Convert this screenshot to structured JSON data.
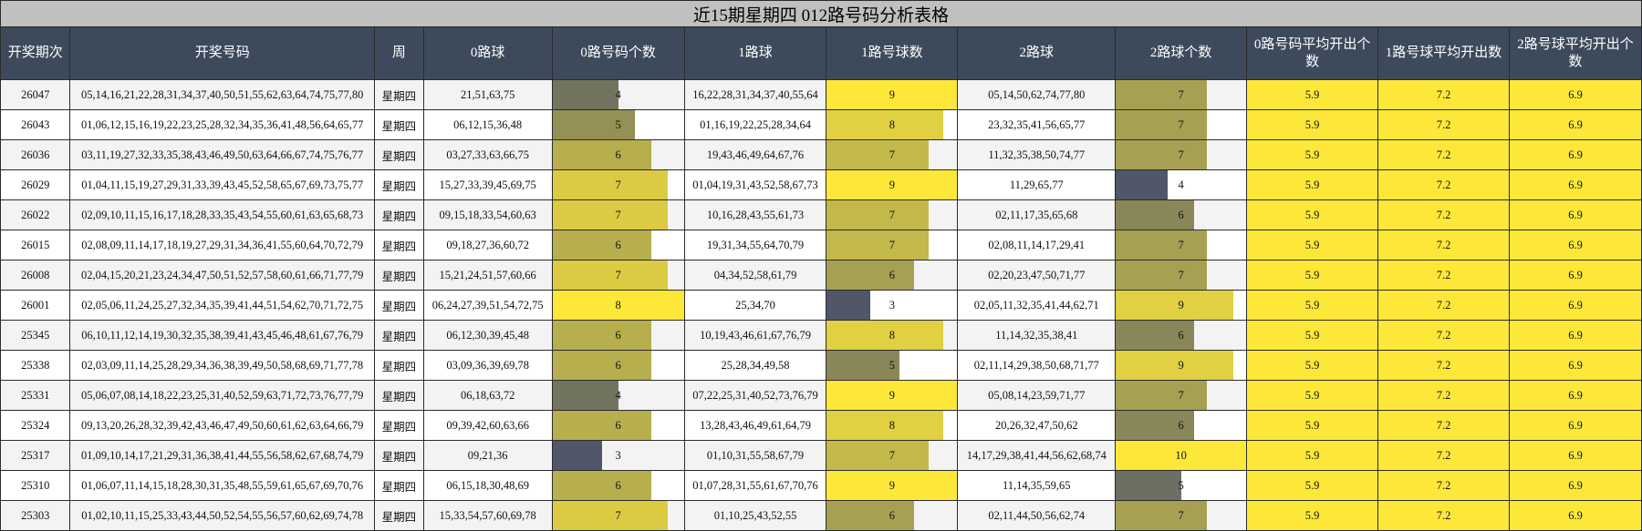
{
  "title": "近15期星期四 012路号码分析表格",
  "header": [
    "开奖期次",
    "开奖号码",
    "周",
    "0路球",
    "0路号码个数",
    "1路球",
    "1路号球数",
    "2路球",
    "2路球个数",
    "0路号码平均开出个数",
    "1路号球平均开出数",
    "2路号球平均开出个数"
  ],
  "rows": [
    [
      "26047",
      "05,14,16,21,22,28,31,34,37,40,50,51,55,62,63,64,74,75,77,80",
      "星期四",
      "21,51,63,75",
      4,
      "16,22,28,31,34,37,40,55,64",
      9,
      "05,14,50,62,74,77,80",
      7,
      5.9,
      7.2,
      6.9
    ],
    [
      "26043",
      "01,06,12,15,16,19,22,23,25,28,32,34,35,36,41,48,56,64,65,77",
      "星期四",
      "06,12,15,36,48",
      5,
      "01,16,19,22,25,28,34,64",
      8,
      "23,32,35,41,56,65,77",
      7,
      5.9,
      7.2,
      6.9
    ],
    [
      "26036",
      "03,11,19,27,32,33,35,38,43,46,49,50,63,64,66,67,74,75,76,77",
      "星期四",
      "03,27,33,63,66,75",
      6,
      "19,43,46,49,64,67,76",
      7,
      "11,32,35,38,50,74,77",
      7,
      5.9,
      7.2,
      6.9
    ],
    [
      "26029",
      "01,04,11,15,19,27,29,31,33,39,43,45,52,58,65,67,69,73,75,77",
      "星期四",
      "15,27,33,39,45,69,75",
      7,
      "01,04,19,31,43,52,58,67,73",
      9,
      "11,29,65,77",
      4,
      5.9,
      7.2,
      6.9
    ],
    [
      "26022",
      "02,09,10,11,15,16,17,18,28,33,35,43,54,55,60,61,63,65,68,73",
      "星期四",
      "09,15,18,33,54,60,63",
      7,
      "10,16,28,43,55,61,73",
      7,
      "02,11,17,35,65,68",
      6,
      5.9,
      7.2,
      6.9
    ],
    [
      "26015",
      "02,08,09,11,14,17,18,19,27,29,31,34,36,41,55,60,64,70,72,79",
      "星期四",
      "09,18,27,36,60,72",
      6,
      "19,31,34,55,64,70,79",
      7,
      "02,08,11,14,17,29,41",
      7,
      5.9,
      7.2,
      6.9
    ],
    [
      "26008",
      "02,04,15,20,21,23,24,34,47,50,51,52,57,58,60,61,66,71,77,79",
      "星期四",
      "15,21,24,51,57,60,66",
      7,
      "04,34,52,58,61,79",
      6,
      "02,20,23,47,50,71,77",
      7,
      5.9,
      7.2,
      6.9
    ],
    [
      "26001",
      "02,05,06,11,24,25,27,32,34,35,39,41,44,51,54,62,70,71,72,75",
      "星期四",
      "06,24,27,39,51,54,72,75",
      8,
      "25,34,70",
      3,
      "02,05,11,32,35,41,44,62,71",
      9,
      5.9,
      7.2,
      6.9
    ],
    [
      "25345",
      "06,10,11,12,14,19,30,32,35,38,39,41,43,45,46,48,61,67,76,79",
      "星期四",
      "06,12,30,39,45,48",
      6,
      "10,19,43,46,61,67,76,79",
      8,
      "11,14,32,35,38,41",
      6,
      5.9,
      7.2,
      6.9
    ],
    [
      "25338",
      "02,03,09,11,14,25,28,29,34,36,38,39,49,50,58,68,69,71,77,78",
      "星期四",
      "03,09,36,39,69,78",
      6,
      "25,28,34,49,58",
      5,
      "02,11,14,29,38,50,68,71,77",
      9,
      5.9,
      7.2,
      6.9
    ],
    [
      "25331",
      "05,06,07,08,14,18,22,23,25,31,40,52,59,63,71,72,73,76,77,79",
      "星期四",
      "06,18,63,72",
      4,
      "07,22,25,31,40,52,73,76,79",
      9,
      "05,08,14,23,59,71,77",
      7,
      5.9,
      7.2,
      6.9
    ],
    [
      "25324",
      "09,13,20,26,28,32,39,42,43,46,47,49,50,60,61,62,63,64,66,79",
      "星期四",
      "09,39,42,60,63,66",
      6,
      "13,28,43,46,49,61,64,79",
      8,
      "20,26,32,47,50,62",
      6,
      5.9,
      7.2,
      6.9
    ],
    [
      "25317",
      "01,09,10,14,17,21,29,31,36,38,41,44,55,56,58,62,67,68,74,79",
      "星期四",
      "09,21,36",
      3,
      "01,10,31,55,58,67,79",
      7,
      "14,17,29,38,41,44,56,62,68,74",
      10,
      5.9,
      7.2,
      6.9
    ],
    [
      "25310",
      "01,06,07,11,14,15,18,28,30,31,35,48,55,59,61,65,67,69,70,76",
      "星期四",
      "06,15,18,30,48,69",
      6,
      "01,07,28,31,55,61,67,70,76",
      9,
      "11,14,35,59,65",
      5,
      5.9,
      7.2,
      6.9
    ],
    [
      "25303",
      "01,02,10,11,15,25,33,43,44,50,52,54,55,56,57,60,62,69,74,78",
      "星期四",
      "15,33,54,57,60,69,78",
      7,
      "01,10,25,43,52,55",
      6,
      "02,11,44,50,56,62,74",
      7,
      5.9,
      7.2,
      6.9
    ]
  ],
  "bar_color_low": "#4f5769",
  "bar_color_high": "#fde83a",
  "average_background": "#fde83a"
}
